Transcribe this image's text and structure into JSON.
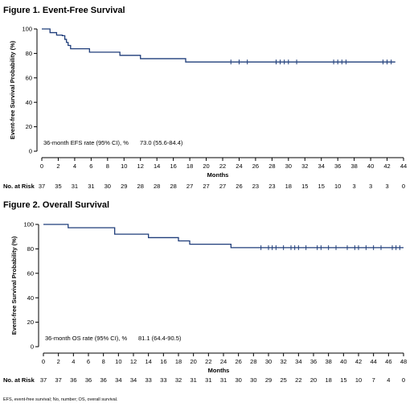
{
  "chart_data": [
    {
      "type": "line",
      "title": "Figure 1. Event-Free Survival",
      "xlabel": "Months",
      "ylabel": "Event-free Survival Probability (%)",
      "xlim": [
        0,
        44
      ],
      "ylim": [
        0,
        100
      ],
      "x_ticks": [
        0,
        2,
        4,
        6,
        8,
        10,
        12,
        14,
        16,
        18,
        20,
        22,
        24,
        26,
        28,
        30,
        32,
        34,
        36,
        38,
        40,
        42,
        44
      ],
      "y_ticks": [
        0,
        20,
        40,
        60,
        80,
        100
      ],
      "grid": false,
      "color": "#1f3d7a",
      "step_points": {
        "x": [
          0,
          1,
          1.8,
          2.5,
          2.8,
          3.0,
          3.2,
          3.5,
          5.8,
          9.5,
          12.0,
          17.5,
          43
        ],
        "y": [
          100,
          97,
          95,
          94.5,
          91.5,
          89,
          86.5,
          83.8,
          81,
          78.4,
          75.7,
          73,
          73
        ]
      },
      "censor_times": [
        23,
        24,
        25,
        28.5,
        29,
        29.5,
        30,
        31,
        35.5,
        36,
        36.5,
        37,
        41.5,
        42,
        42.5
      ],
      "annotation_label": "36-month EFS rate (95% CI), %",
      "annotation_value": "73.0 (55.6-84.4)",
      "risk_label": "No. at Risk",
      "at_risk": [
        37,
        35,
        31,
        31,
        30,
        29,
        28,
        28,
        28,
        27,
        27,
        27,
        26,
        23,
        23,
        18,
        15,
        15,
        10,
        3,
        3,
        3,
        0
      ]
    },
    {
      "type": "line",
      "title": "Figure 2. Overall Survival",
      "xlabel": "Months",
      "ylabel": "Event-free Survival Probability (%)",
      "xlim": [
        0,
        48
      ],
      "ylim": [
        0,
        100
      ],
      "x_ticks": [
        0,
        2,
        4,
        6,
        8,
        10,
        12,
        14,
        16,
        18,
        20,
        22,
        24,
        26,
        28,
        30,
        32,
        34,
        36,
        38,
        40,
        42,
        44,
        46,
        48
      ],
      "y_ticks": [
        0,
        20,
        40,
        60,
        80,
        100
      ],
      "grid": false,
      "color": "#1f3d7a",
      "step_points": {
        "x": [
          0,
          3.3,
          9.5,
          14,
          18,
          19.5,
          25,
          48
        ],
        "y": [
          100,
          97.3,
          92,
          89.2,
          86.5,
          83.8,
          81,
          81
        ]
      },
      "censor_times": [
        29,
        30,
        30.5,
        31,
        32,
        33,
        33.5,
        34,
        35,
        36.5,
        37,
        38,
        39,
        40.5,
        41.5,
        42,
        43,
        44,
        45,
        46.5,
        47,
        47.5
      ],
      "annotation_label": "36-month OS rate (95% CI), %",
      "annotation_value": "81.1 (64.4-90.5)",
      "risk_label": "No. at Risk",
      "at_risk": [
        37,
        37,
        36,
        36,
        36,
        34,
        34,
        33,
        33,
        32,
        31,
        31,
        31,
        30,
        30,
        29,
        25,
        22,
        20,
        18,
        15,
        10,
        7,
        4,
        0
      ]
    }
  ],
  "footnote": "EFS, event-free survival; No, number; OS, overall survival."
}
